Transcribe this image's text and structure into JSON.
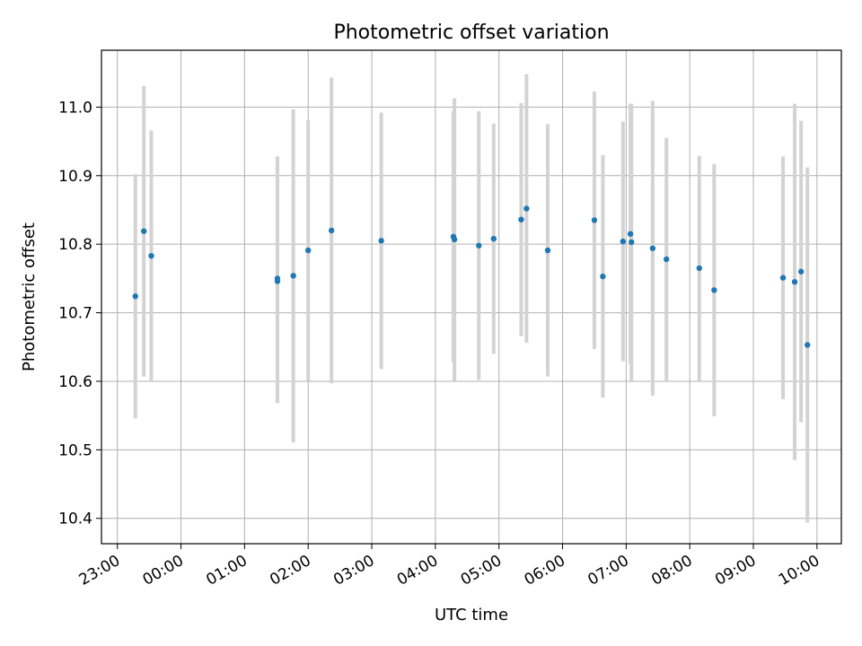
{
  "chart_data": {
    "type": "scatter",
    "title": "Photometric offset variation",
    "xlabel": "UTC time",
    "ylabel": "Photometric offset",
    "x_ticks": [
      "23:00",
      "00:00",
      "01:00",
      "02:00",
      "03:00",
      "04:00",
      "05:00",
      "06:00",
      "07:00",
      "08:00",
      "09:00",
      "10:00"
    ],
    "y_ticks": [
      "10.4",
      "10.5",
      "10.6",
      "10.7",
      "10.8",
      "10.9",
      "11.0"
    ],
    "xlim": [
      "22:45",
      "10:23"
    ],
    "ylim": [
      10.363,
      11.083
    ],
    "grid": true,
    "errorbar_color": "#d3d3d3",
    "marker_color": "#1f77b4",
    "points": [
      {
        "x": "23:17",
        "y": 10.724,
        "err": 0.178
      },
      {
        "x": "23:25",
        "y": 10.819,
        "err": 0.212
      },
      {
        "x": "23:32",
        "y": 10.783,
        "err": 0.183
      },
      {
        "x": "01:31",
        "y": 10.746,
        "err": 0.178
      },
      {
        "x": "01:31",
        "y": 10.75,
        "err": 0.178
      },
      {
        "x": "01:46",
        "y": 10.754,
        "err": 0.243
      },
      {
        "x": "02:00",
        "y": 10.791,
        "err": 0.19
      },
      {
        "x": "02:22",
        "y": 10.82,
        "err": 0.223
      },
      {
        "x": "03:09",
        "y": 10.805,
        "err": 0.187
      },
      {
        "x": "04:17",
        "y": 10.811,
        "err": 0.183
      },
      {
        "x": "04:18",
        "y": 10.807,
        "err": 0.206
      },
      {
        "x": "04:41",
        "y": 10.798,
        "err": 0.196
      },
      {
        "x": "04:55",
        "y": 10.808,
        "err": 0.168
      },
      {
        "x": "05:21",
        "y": 10.836,
        "err": 0.17
      },
      {
        "x": "05:26",
        "y": 10.852,
        "err": 0.196
      },
      {
        "x": "05:46",
        "y": 10.791,
        "err": 0.184
      },
      {
        "x": "06:30",
        "y": 10.835,
        "err": 0.188
      },
      {
        "x": "06:38",
        "y": 10.753,
        "err": 0.177
      },
      {
        "x": "06:57",
        "y": 10.804,
        "err": 0.175
      },
      {
        "x": "07:04",
        "y": 10.815,
        "err": 0.19
      },
      {
        "x": "07:05",
        "y": 10.803,
        "err": 0.202
      },
      {
        "x": "07:25",
        "y": 10.794,
        "err": 0.215
      },
      {
        "x": "07:38",
        "y": 10.778,
        "err": 0.177
      },
      {
        "x": "08:09",
        "y": 10.765,
        "err": 0.164
      },
      {
        "x": "08:23",
        "y": 10.733,
        "err": 0.184
      },
      {
        "x": "09:28",
        "y": 10.751,
        "err": 0.177
      },
      {
        "x": "09:39",
        "y": 10.745,
        "err": 0.26
      },
      {
        "x": "09:45",
        "y": 10.76,
        "err": 0.22
      },
      {
        "x": "09:51",
        "y": 10.653,
        "err": 0.259
      }
    ]
  }
}
